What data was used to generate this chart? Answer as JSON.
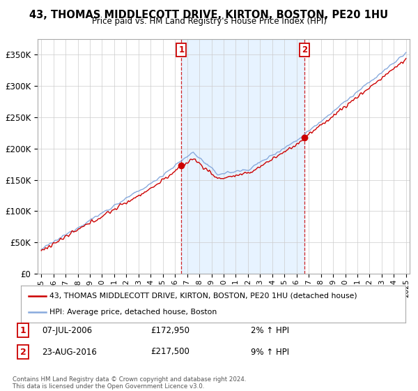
{
  "title": "43, THOMAS MIDDLECOTT DRIVE, KIRTON, BOSTON, PE20 1HU",
  "subtitle": "Price paid vs. HM Land Registry's House Price Index (HPI)",
  "ylabel_ticks": [
    "£0",
    "£50K",
    "£100K",
    "£150K",
    "£200K",
    "£250K",
    "£300K",
    "£350K"
  ],
  "ytick_values": [
    0,
    50000,
    100000,
    150000,
    200000,
    250000,
    300000,
    350000
  ],
  "ylim": [
    0,
    375000
  ],
  "xlim_start": 1994.7,
  "xlim_end": 2025.3,
  "sale1_x": 2006.52,
  "sale1_y": 172950,
  "sale1_label": "1",
  "sale1_date": "07-JUL-2006",
  "sale1_price": "£172,950",
  "sale1_hpi": "2% ↑ HPI",
  "sale2_x": 2016.65,
  "sale2_y": 217500,
  "sale2_label": "2",
  "sale2_date": "23-AUG-2016",
  "sale2_price": "£217,500",
  "sale2_hpi": "9% ↑ HPI",
  "legend_line1": "43, THOMAS MIDDLECOTT DRIVE, KIRTON, BOSTON, PE20 1HU (detached house)",
  "legend_line2": "HPI: Average price, detached house, Boston",
  "footnote": "Contains HM Land Registry data © Crown copyright and database right 2024.\nThis data is licensed under the Open Government Licence v3.0.",
  "line_color": "#cc0000",
  "hpi_color": "#88aadd",
  "shade_color": "#ddeeff",
  "bg_color": "#ffffff",
  "plot_bg": "#ffffff",
  "grid_color": "#cccccc"
}
